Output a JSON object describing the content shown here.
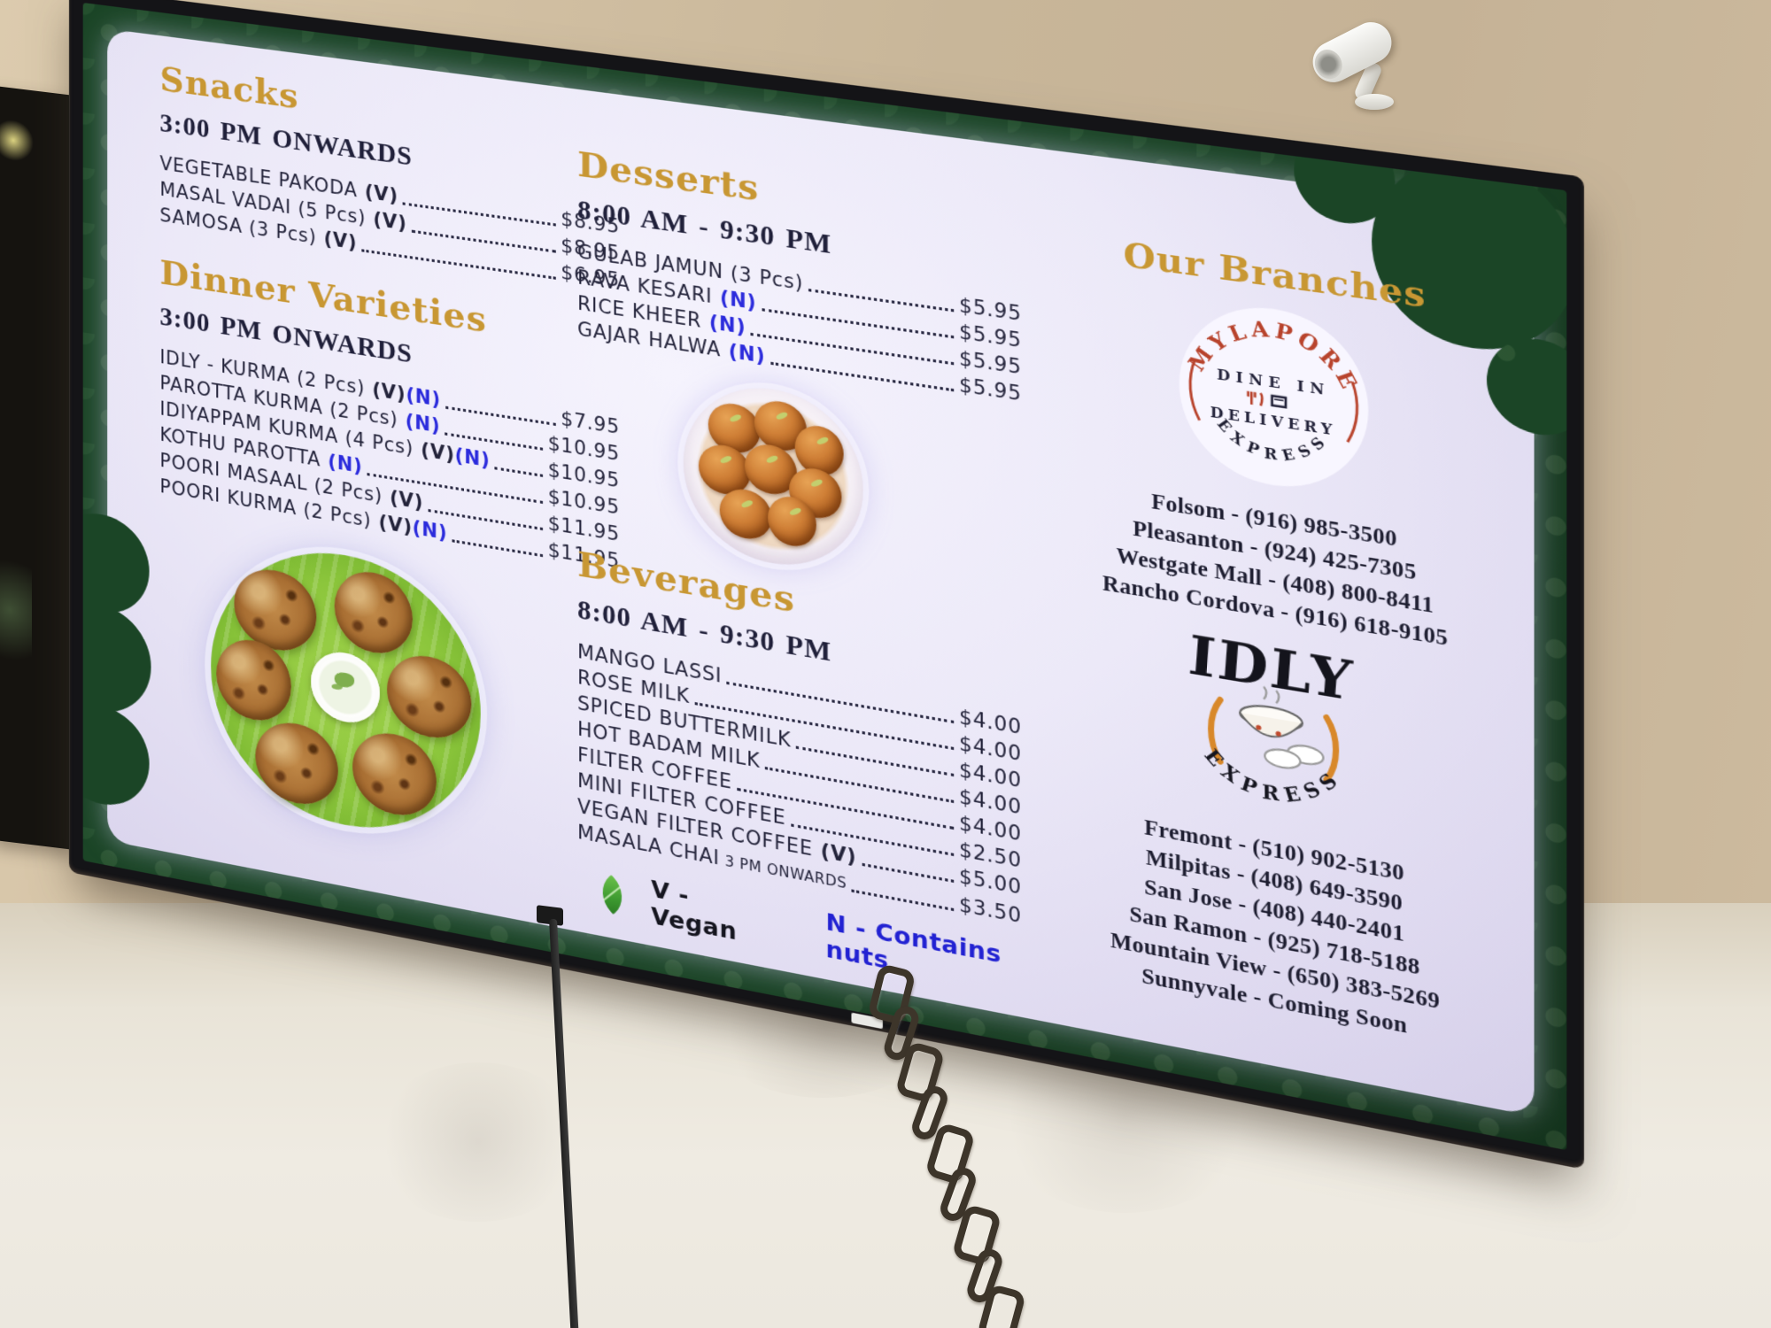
{
  "menu": {
    "sections": [
      {
        "title": "Snacks",
        "hours": "3:00 PM ONWARDS",
        "items": [
          {
            "name": "VEGETABLE PAKODA",
            "tags": [
              "V"
            ],
            "price": "$8.95"
          },
          {
            "name": "MASAL VADAI (5 Pcs)",
            "tags": [
              "V"
            ],
            "price": "$8.95"
          },
          {
            "name": "SAMOSA (3 Pcs)",
            "tags": [
              "V"
            ],
            "price": "$6.95"
          }
        ]
      },
      {
        "title": "Dinner Varieties",
        "hours": "3:00 PM ONWARDS",
        "items": [
          {
            "name": "IDLY - KURMA (2 Pcs)",
            "tags": [
              "V",
              "N"
            ],
            "price": "$7.95"
          },
          {
            "name": "PAROTTA KURMA (2 Pcs)",
            "tags": [
              "N"
            ],
            "price": "$10.95"
          },
          {
            "name": "IDIYAPPAM KURMA (4 Pcs)",
            "tags": [
              "V",
              "N"
            ],
            "price": "$10.95"
          },
          {
            "name": "KOTHU PAROTTA",
            "tags": [
              "N"
            ],
            "price": "$10.95"
          },
          {
            "name": "POORI MASAAL (2 Pcs)",
            "tags": [
              "V"
            ],
            "price": "$11.95"
          },
          {
            "name": "POORI KURMA (2 Pcs)",
            "tags": [
              "V",
              "N"
            ],
            "price": "$11.95"
          }
        ]
      },
      {
        "title": "Desserts",
        "hours": "8:00 AM - 9:30 PM",
        "items": [
          {
            "name": "GULAB JAMUN (3 Pcs)",
            "tags": [],
            "price": "$5.95"
          },
          {
            "name": "RAVA KESARI",
            "tags": [
              "N"
            ],
            "price": "$5.95"
          },
          {
            "name": "RICE KHEER",
            "tags": [
              "N"
            ],
            "price": "$5.95"
          },
          {
            "name": "GAJAR HALWA",
            "tags": [
              "N"
            ],
            "price": "$5.95"
          }
        ]
      },
      {
        "title": "Beverages",
        "hours": "8:00 AM - 9:30 PM",
        "items": [
          {
            "name": "MANGO LASSI",
            "tags": [],
            "price": "$4.00"
          },
          {
            "name": "ROSE MILK",
            "tags": [],
            "price": "$4.00"
          },
          {
            "name": "SPICED BUTTERMILK",
            "tags": [],
            "price": "$4.00"
          },
          {
            "name": "HOT BADAM MILK",
            "tags": [],
            "price": "$4.00"
          },
          {
            "name": "FILTER COFFEE",
            "tags": [],
            "price": "$4.00"
          },
          {
            "name": "MINI FILTER COFFEE",
            "tags": [],
            "price": "$2.50"
          },
          {
            "name": "VEGAN FILTER COFFEE",
            "tags": [
              "V"
            ],
            "price": "$5.00"
          },
          {
            "name": "MASALA CHAI",
            "tags": [],
            "note": " 3 PM ONWARDS",
            "price": "$3.50"
          }
        ]
      }
    ],
    "legend": {
      "vegan": "V - Vegan",
      "nuts": "N - Contains nuts"
    },
    "branches": {
      "title": "Our Branches",
      "mylapore": {
        "logo": {
          "top": "MYLAPORE",
          "line1": "DINE IN",
          "line2": "DELIVERY",
          "bottom": "EXPRESS"
        },
        "locations": [
          "Folsom - (916) 985-3500",
          "Pleasanton - (924) 425-7305",
          "Westgate Mall - (408) 800-8411",
          "Rancho Cordova - (916) 618-9105"
        ]
      },
      "idly": {
        "logo": {
          "name": "IDLY",
          "bottom": "EXPRESS"
        },
        "locations": [
          "Fremont - (510) 902-5130",
          "Milpitas - (408) 649-3590",
          "San Jose - (408) 440-2401",
          "San Ramon - (925) 718-5188",
          "Mountain View - (650) 383-5269",
          "Sunnyvale - Coming Soon"
        ]
      }
    }
  },
  "colors": {
    "heading_gold": "#c89733",
    "menu_text_navy": "#23233a",
    "nut_tag_blue": "#2b2bdc",
    "vegan_leaf_green": "#3d9a30",
    "screen_border_green": "#1b4526",
    "panel_lavender": "#ece9f8",
    "logo_red": "#b8432c"
  }
}
